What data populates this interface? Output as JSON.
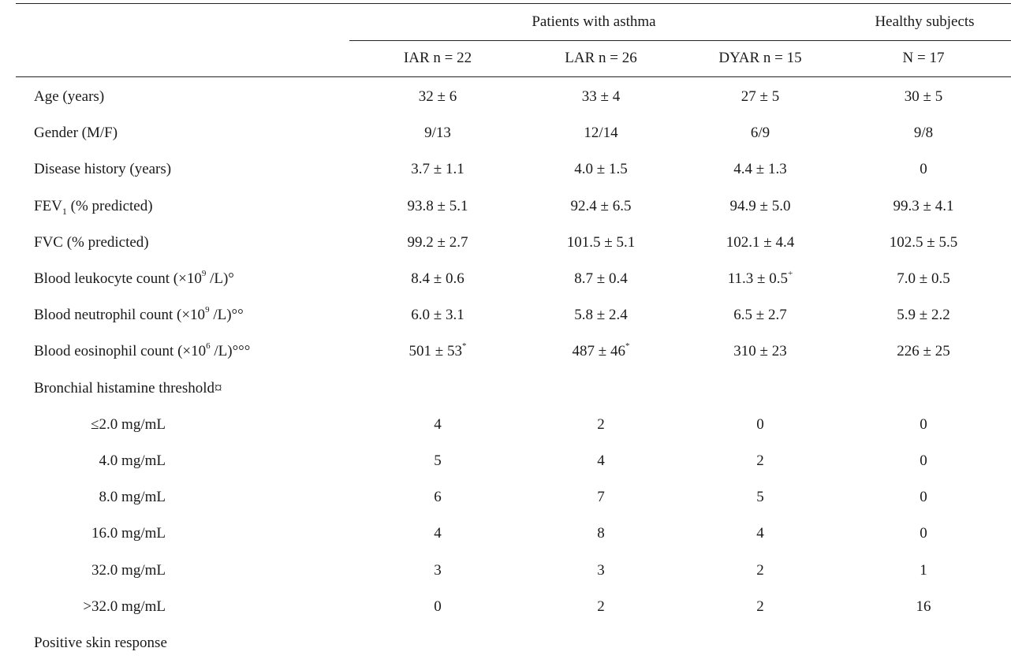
{
  "header": {
    "group_asthma": "Patients with asthma",
    "group_healthy": "Healthy subjects",
    "columns": [
      "IAR n = 22",
      "LAR n = 26",
      "DYAR n = 15",
      "N = 17"
    ]
  },
  "rows": [
    {
      "label": "Age (years)",
      "values": [
        "32 ± 6",
        "33 ± 4",
        "27 ± 5",
        "30 ± 5"
      ]
    },
    {
      "label": "Gender (M/F)",
      "values": [
        "9/13",
        "12/14",
        "6/9",
        "9/8"
      ]
    },
    {
      "label": "Disease history (years)",
      "values": [
        "3.7 ± 1.1",
        "4.0 ± 1.5",
        "4.4 ± 1.3",
        "0"
      ]
    },
    {
      "label_pre": "FEV",
      "label_sub": "1",
      "label_post": " (% predicted)",
      "values": [
        "93.8 ± 5.1",
        "92.4 ± 6.5",
        "94.9 ± 5.0",
        "99.3 ± 4.1"
      ]
    },
    {
      "label": "FVC (% predicted)",
      "values": [
        "99.2 ± 2.7",
        "101.5 ± 5.1",
        "102.1 ± 4.4",
        "102.5 ± 5.5"
      ]
    },
    {
      "label_pre": "Blood leukocyte count (×10",
      "label_sup": "9",
      "label_post": " /L)°",
      "values": [
        "8.4 ± 0.6",
        "8.7 ± 0.4",
        "11.3 ± 0.5",
        "7.0 ± 0.5"
      ],
      "marks": [
        "",
        "",
        "+",
        ""
      ]
    },
    {
      "label_pre": "Blood neutrophil count (×10",
      "label_sup": "9",
      "label_post": " /L)°°",
      "values": [
        "6.0 ± 3.1",
        "5.8 ± 2.4",
        "6.5 ± 2.7",
        "5.9 ± 2.2"
      ]
    },
    {
      "label_pre": "Blood eosinophil count (×10",
      "label_sup": "6",
      "label_post": " /L)°°°",
      "values": [
        "501 ± 53",
        "487 ± 46",
        "310 ± 23",
        "226 ± 25"
      ],
      "marks": [
        "*",
        "*",
        "",
        ""
      ]
    },
    {
      "label": "Bronchial histamine threshold¤",
      "values": []
    },
    {
      "label": "≤2.0 mg/mL",
      "indent": true,
      "values": [
        "4",
        "2",
        "0",
        "0"
      ]
    },
    {
      "label": "4.0 mg/mL",
      "indent": true,
      "values": [
        "5",
        "4",
        "2",
        "0"
      ]
    },
    {
      "label": "8.0 mg/mL",
      "indent": true,
      "values": [
        "6",
        "7",
        "5",
        "0"
      ]
    },
    {
      "label": "16.0 mg/mL",
      "indent": true,
      "values": [
        "4",
        "8",
        "4",
        "0"
      ]
    },
    {
      "label": "32.0 mg/mL",
      "indent": true,
      "values": [
        "3",
        "3",
        "2",
        "1"
      ]
    },
    {
      "label": ">32.0 mg/mL",
      "indent": true,
      "values": [
        "0",
        "2",
        "2",
        "16"
      ]
    },
    {
      "label": "Positive skin response",
      "values": []
    }
  ]
}
